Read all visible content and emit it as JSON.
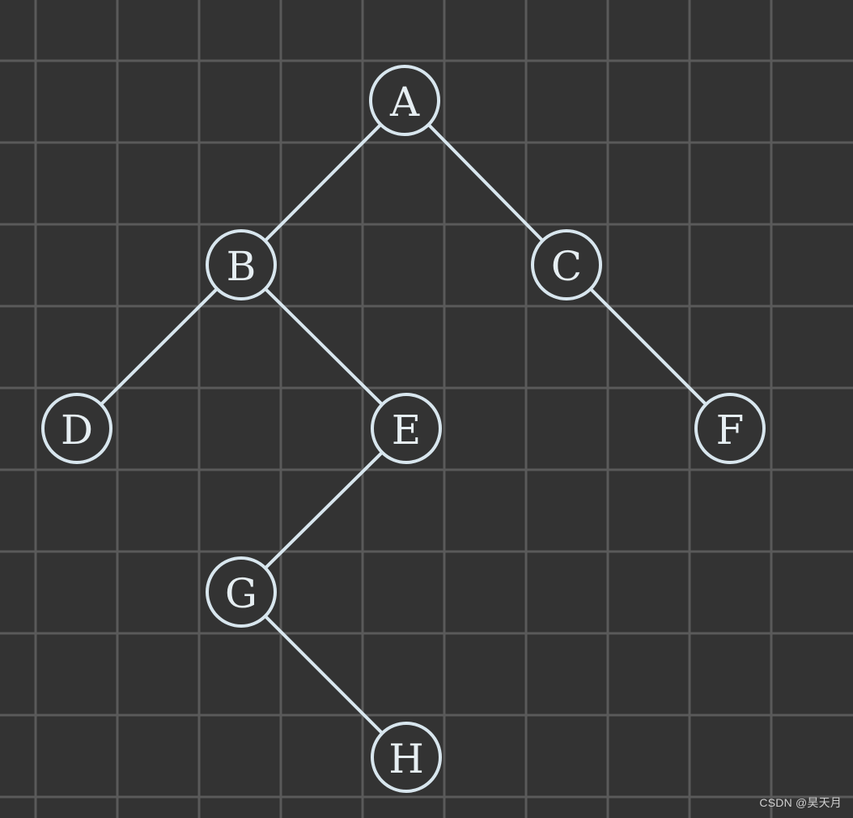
{
  "diagram": {
    "type": "binary-tree",
    "nodes": [
      {
        "id": "A",
        "label": "A"
      },
      {
        "id": "B",
        "label": "B"
      },
      {
        "id": "C",
        "label": "C"
      },
      {
        "id": "D",
        "label": "D"
      },
      {
        "id": "E",
        "label": "E"
      },
      {
        "id": "F",
        "label": "F"
      },
      {
        "id": "G",
        "label": "G"
      },
      {
        "id": "H",
        "label": "H"
      }
    ],
    "edges": [
      {
        "from": "A",
        "to": "B"
      },
      {
        "from": "A",
        "to": "C"
      },
      {
        "from": "B",
        "to": "D"
      },
      {
        "from": "B",
        "to": "E"
      },
      {
        "from": "C",
        "to": "F"
      },
      {
        "from": "E",
        "to": "G"
      },
      {
        "from": "G",
        "to": "H"
      }
    ]
  },
  "watermark": "CSDN @昊天月"
}
